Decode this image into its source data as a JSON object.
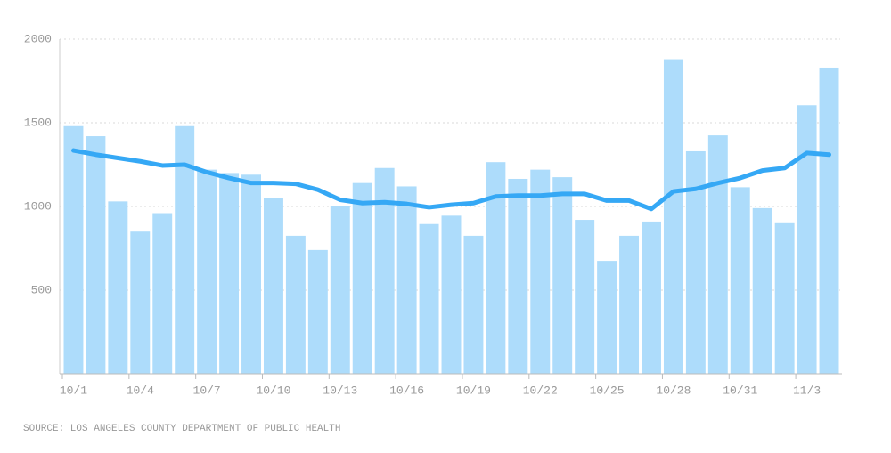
{
  "chart_data": {
    "type": "bar",
    "source": "SOURCE: LOS ANGELES COUNTY DEPARTMENT OF PUBLIC HEALTH",
    "categories": [
      "10/1",
      null,
      null,
      "10/4",
      null,
      null,
      "10/7",
      null,
      null,
      "10/10",
      null,
      null,
      "10/13",
      null,
      null,
      "10/16",
      null,
      null,
      "10/19",
      null,
      null,
      "10/22",
      null,
      null,
      "10/25",
      null,
      null,
      "10/28",
      null,
      null,
      "10/31",
      null,
      null,
      "11/3",
      null
    ],
    "series": [
      {
        "type": "bar",
        "color": "#addcfb",
        "values": [
          1480,
          1420,
          1030,
          850,
          960,
          1480,
          1220,
          1200,
          1190,
          1050,
          825,
          740,
          1000,
          1140,
          1230,
          1120,
          895,
          945,
          825,
          1265,
          1165,
          1220,
          1175,
          920,
          675,
          825,
          910,
          1880,
          1330,
          1425,
          1115,
          990,
          900,
          1605,
          1830
        ]
      },
      {
        "type": "line",
        "color": "#35a8f5",
        "values": [
          1335,
          1310,
          1290,
          1270,
          1245,
          1250,
          1205,
          1170,
          1140,
          1140,
          1135,
          1100,
          1040,
          1020,
          1025,
          1015,
          995,
          1010,
          1020,
          1060,
          1065,
          1065,
          1075,
          1075,
          1035,
          1035,
          985,
          1090,
          1105,
          1140,
          1170,
          1215,
          1230,
          1320,
          1310
        ]
      }
    ],
    "ylim": [
      0,
      2000
    ],
    "yticks": [
      500,
      1000,
      1500,
      2000
    ],
    "grid": true
  }
}
